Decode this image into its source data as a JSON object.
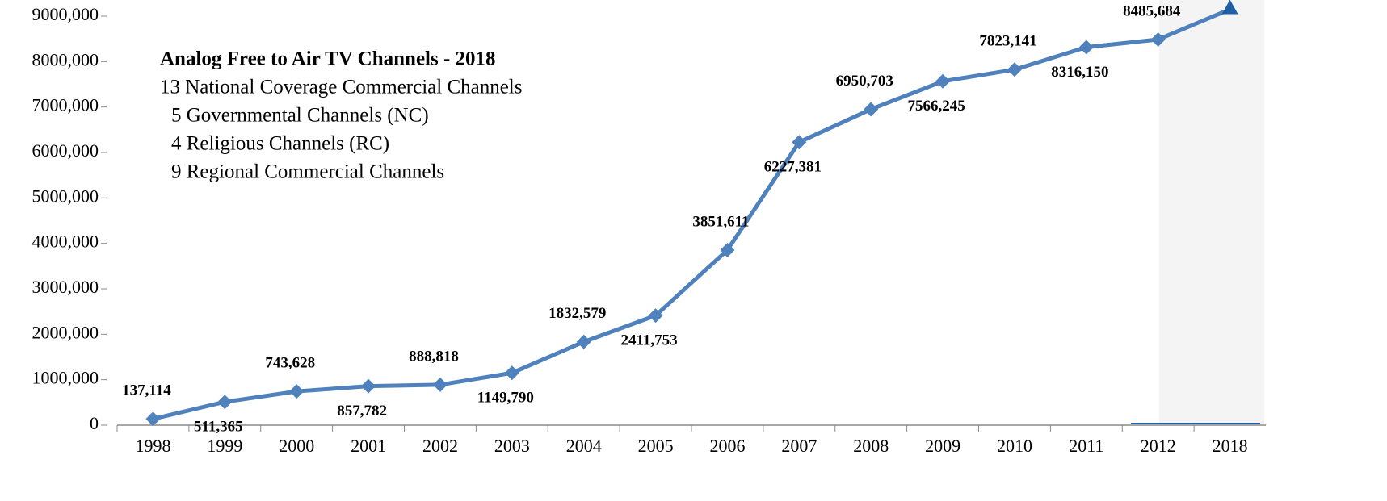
{
  "chart_data": {
    "type": "line",
    "categories": [
      "1998",
      "1999",
      "2000",
      "2001",
      "2002",
      "2003",
      "2004",
      "2005",
      "2006",
      "2007",
      "2008",
      "2009",
      "2010",
      "2011",
      "2012",
      "2018"
    ],
    "series": [
      {
        "name": "Analog TV channels",
        "color": "#4f81bd",
        "values": [
          137114,
          511365,
          743628,
          857782,
          888818,
          1149790,
          1832579,
          2411753,
          3851611,
          6227381,
          6950703,
          7566245,
          7823141,
          8316150,
          8485684,
          9150000
        ],
        "value_labels": [
          "137,114",
          "511,365",
          "743,628",
          "857,782",
          "888,818",
          "1149,790",
          "1832,579",
          "2411,753",
          "3851,611",
          "6227,381",
          "6950,703",
          "7566,245",
          "7823,141",
          "8316,150",
          "8485,684",
          null
        ]
      }
    ],
    "ylim": [
      0,
      9000000
    ],
    "yticks": [
      0,
      {
        "value": 1000000,
        "label": "1000,000"
      },
      {
        "value": 2000000,
        "label": "2000,000"
      },
      {
        "value": 3000000,
        "label": "3000,000"
      },
      {
        "value": 4000000,
        "label": "4000,000"
      },
      {
        "value": 5000000,
        "label": "5000,000"
      },
      {
        "value": 6000000,
        "label": "6000,000"
      },
      {
        "value": 7000000,
        "label": "7000,000"
      },
      {
        "value": 8000000,
        "label": "8000,000"
      },
      {
        "value": 9000000,
        "label": "9000,000"
      }
    ],
    "grid": false,
    "annotation": {
      "title": "Analog Free to Air TV Channels - 2018",
      "lines": [
        "13 National Coverage Commercial Channels",
        "5 Governmental Channels  (NC)",
        "4 Religious Channels (RC)",
        "9 Regional Commercial Channels"
      ]
    }
  }
}
